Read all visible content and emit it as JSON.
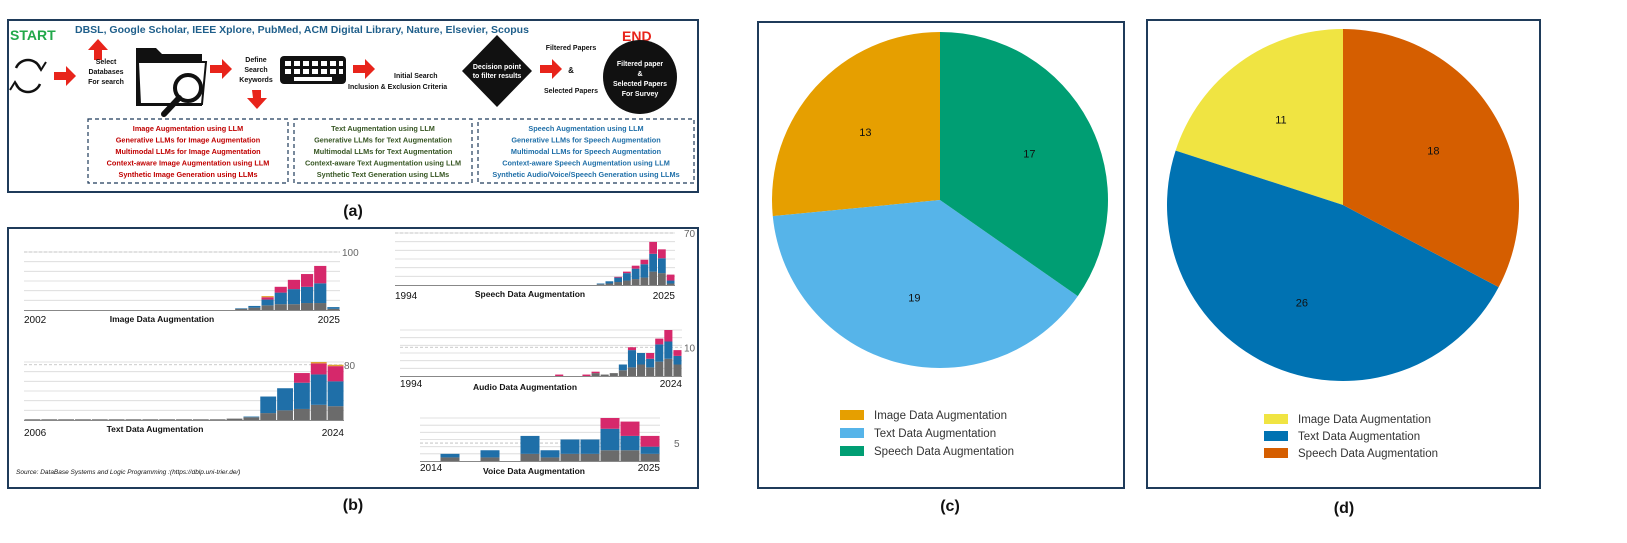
{
  "panel_a": {
    "start": "START",
    "end": "END",
    "databases": "DBSL, Google Scholar,  IEEE Xplore, PubMed, ACM Digital Library, Nature, Elsevier, Scopus",
    "select_lines": [
      "Select",
      "Databases",
      "For search"
    ],
    "define_lines": [
      "Define",
      "Search",
      "Keywords"
    ],
    "initial_search": "Initial Search",
    "criteria": "Inclusion & Exclusion Criteria",
    "decision_lines": [
      "Decision point",
      "to filter results"
    ],
    "filtered_papers": "Filtered Papers",
    "amp": "&",
    "selected_papers": "Selected Papers",
    "end_circle_lines": [
      "Filtered paper",
      "&",
      "Selected Papers",
      "For Survey"
    ],
    "image_items": [
      "Image Augmentation using LLM",
      "Generative LLMs for Image Augmentation",
      "Multimodal LLMs for Image Augmentation",
      "Context-aware Image Augmentation using LLM",
      "Synthetic Image Generation using LLMs"
    ],
    "text_items": [
      "Text Augmentation using LLM",
      "Generative LLMs for Text Augmentation",
      "Multimodal LLMs for Text Augmentation",
      "Context-aware Text Augmentation using LLM",
      "Synthetic Text Generation using LLMs"
    ],
    "speech_items": [
      "Speech Augmentation using LLM",
      "Generative LLMs for Speech Augmentation",
      "Multimodal LLMs for Speech Augmentation",
      "Context-aware Speech Augmentation using LLM",
      "Synthetic Audio/Voice/Speech Generation using LLMs"
    ],
    "colors": {
      "image": "#c00000",
      "text": "#375623",
      "speech": "#1f6fa8",
      "green": "#22a84a",
      "blue": "#1f5f8b",
      "arrow": "#e8241b"
    }
  },
  "panel_b": {
    "source": "Source: DataBase Systems and Logic Programming :(https://dblp.uni-trier.de/)",
    "chart_data": [
      {
        "type": "bar",
        "title": "Image Data Augmentation",
        "x_start": "2002",
        "x_end": "2025",
        "ref_label": "100",
        "ref_value": 100,
        "n_years": 24,
        "grey": [
          0,
          0,
          0,
          0,
          0,
          0,
          0,
          0,
          0,
          0,
          0,
          0,
          0,
          0,
          0,
          0,
          2,
          4,
          8,
          10,
          10,
          12,
          12,
          2
        ],
        "blue": [
          0,
          0,
          0,
          0,
          0,
          0,
          0,
          0,
          0,
          0,
          0,
          0,
          0,
          0,
          0,
          0,
          1,
          3,
          10,
          20,
          26,
          28,
          34,
          3
        ],
        "pink": [
          0,
          0,
          0,
          0,
          0,
          0,
          0,
          0,
          0,
          0,
          0,
          0,
          0,
          0,
          0,
          0,
          0,
          0,
          4,
          10,
          16,
          22,
          30,
          0
        ],
        "amber": [
          0,
          0,
          0,
          0,
          0,
          0,
          0,
          0,
          0,
          0,
          0,
          0,
          0,
          0,
          0,
          0,
          0,
          0,
          2,
          0,
          0,
          0,
          0,
          0
        ]
      },
      {
        "type": "bar",
        "title": "Speech Data Augmentation",
        "x_start": "1994",
        "x_end": "2025",
        "ref_label": "70",
        "ref_value": 70,
        "n_years": 32,
        "grey": [
          0,
          0,
          0,
          0,
          0,
          0,
          0,
          0,
          0,
          0,
          0,
          0,
          0,
          0,
          0,
          0,
          0,
          0,
          0,
          0,
          0,
          0,
          0,
          1,
          2,
          4,
          6,
          8,
          10,
          18,
          16,
          2
        ],
        "blue": [
          0,
          0,
          0,
          0,
          0,
          0,
          0,
          0,
          0,
          0,
          0,
          0,
          0,
          0,
          0,
          0,
          0,
          0,
          0,
          0,
          0,
          0,
          0,
          1,
          3,
          6,
          10,
          14,
          18,
          24,
          20,
          4
        ],
        "pink": [
          0,
          0,
          0,
          0,
          0,
          0,
          0,
          0,
          0,
          0,
          0,
          0,
          0,
          0,
          0,
          0,
          0,
          0,
          0,
          0,
          0,
          0,
          0,
          0,
          0,
          1,
          2,
          4,
          6,
          16,
          12,
          8
        ]
      },
      {
        "type": "bar",
        "title": "Text Data Augmentation",
        "x_start": "2006",
        "x_end": "2024",
        "ref_label": "80",
        "ref_value": 80,
        "n_years": 19,
        "grey": [
          1,
          1,
          1,
          1,
          1,
          1,
          1,
          1,
          1,
          1,
          1,
          1,
          2,
          4,
          10,
          14,
          16,
          22,
          20
        ],
        "blue": [
          0,
          0,
          0,
          0,
          0,
          0,
          0,
          0,
          0,
          0,
          0,
          0,
          0,
          1,
          24,
          32,
          38,
          44,
          36
        ],
        "pink": [
          0,
          0,
          0,
          0,
          0,
          0,
          0,
          0,
          0,
          0,
          0,
          0,
          0,
          0,
          0,
          0,
          14,
          16,
          22
        ],
        "amber": [
          0,
          0,
          0,
          0,
          0,
          0,
          0,
          0,
          0,
          0,
          0,
          0,
          0,
          0,
          0,
          0,
          0,
          2,
          2
        ]
      },
      {
        "type": "bar",
        "title": "Audio Data Augmentation",
        "x_start": "1994",
        "x_end": "2024",
        "ref_label": "10",
        "ref_value": 10,
        "n_years": 31,
        "grey": [
          0,
          0,
          0,
          0,
          0,
          0,
          0,
          0,
          0,
          0,
          0,
          0,
          0,
          0,
          0,
          0,
          0,
          0,
          0,
          0,
          0,
          1,
          0.5,
          1,
          2,
          3,
          4,
          3,
          5,
          6,
          4
        ],
        "blue": [
          0,
          0,
          0,
          0,
          0,
          0,
          0,
          0,
          0,
          0,
          0,
          0,
          0,
          0,
          0,
          0,
          0,
          0,
          0,
          0,
          0,
          0,
          0,
          0,
          2,
          6,
          4,
          3,
          6,
          6,
          3
        ],
        "pink": [
          0,
          0,
          0,
          0,
          0,
          0,
          0,
          0,
          0,
          0,
          0,
          0,
          0,
          0,
          0,
          0,
          0,
          0.5,
          0,
          0,
          0.5,
          0.5,
          0,
          0,
          0,
          1,
          0,
          2,
          2,
          4,
          2
        ]
      },
      {
        "type": "bar",
        "title": "Voice Data Augmentation",
        "x_start": "2014",
        "x_end": "2025",
        "ref_label": "5",
        "ref_value": 5,
        "n_years": 12,
        "grey": [
          0,
          1,
          0,
          1,
          0,
          2,
          1,
          2,
          2,
          3,
          3,
          2
        ],
        "blue": [
          0,
          1,
          0,
          2,
          0,
          5,
          2,
          4,
          4,
          6,
          4,
          2
        ],
        "pink": [
          0,
          0,
          0,
          0,
          0,
          0,
          0,
          0,
          0,
          3,
          4,
          3
        ]
      }
    ]
  },
  "panel_c": {
    "chart_data": {
      "type": "pie",
      "labels": [
        "Image Data Augmentation",
        "Text Data Augmentation",
        "Speech Data Augmentation"
      ],
      "values": [
        13,
        19,
        17
      ],
      "colors": [
        "#e69f00",
        "#56b4e9",
        "#009e73"
      ]
    }
  },
  "panel_d": {
    "chart_data": {
      "type": "pie",
      "labels": [
        "Image Data Augmentation",
        "Text Data Augmentation",
        "Speech Data Augmentation"
      ],
      "values": [
        11,
        26,
        18
      ],
      "colors": [
        "#f0e442",
        "#0072b2",
        "#d55e00"
      ]
    }
  },
  "captions": {
    "a": "(a)",
    "b": "(b)",
    "c": "(c)",
    "d": "(d)"
  }
}
